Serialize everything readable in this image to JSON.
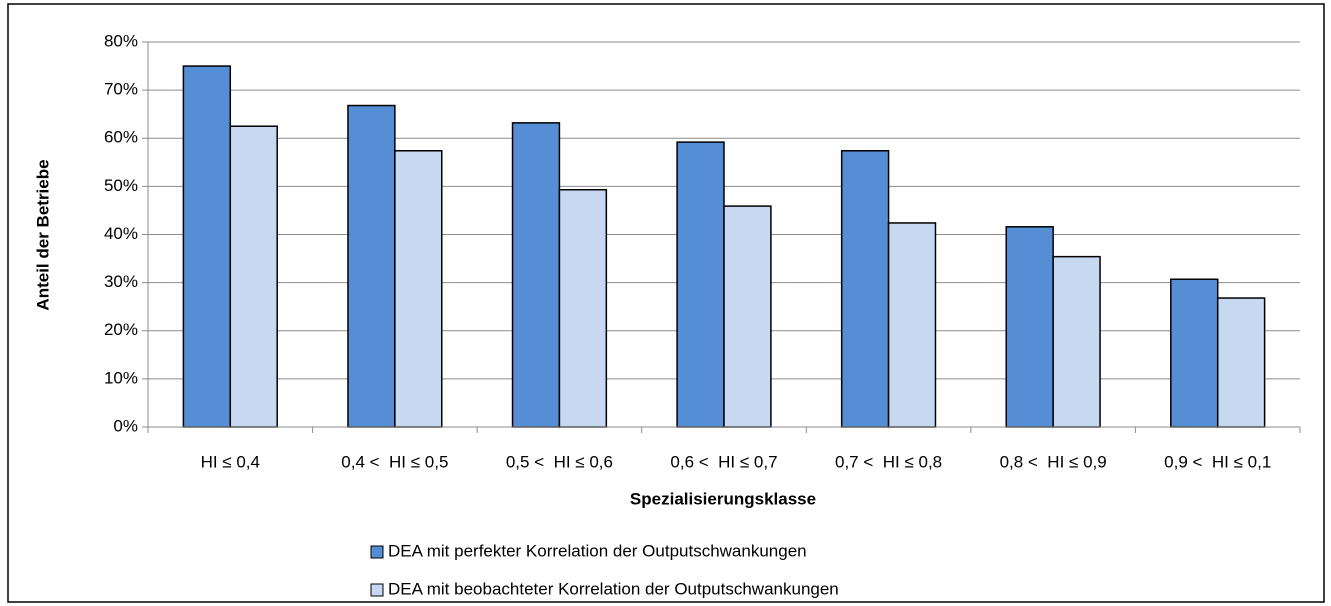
{
  "chart_data": {
    "type": "bar",
    "x_label": "Spezialisierungsklasse",
    "y_label": "Anteil der Betriebe",
    "categories": [
      "HI ≤ 0,4",
      "0,4 <  HI ≤ 0,5",
      "0,5 <  HI ≤ 0,6",
      "0,6 <  HI ≤ 0,7",
      "0,7 <  HI ≤ 0,8",
      "0,8 <  HI ≤ 0,9",
      "0,9 <  HI ≤ 0,1"
    ],
    "series": [
      {
        "name": "DEA mit perfekter Korrelation der Outputschwankungen",
        "color": "#558ed5",
        "values": [
          75,
          66.8,
          63.2,
          59.2,
          57.4,
          41.6,
          30.7
        ]
      },
      {
        "name": "DEA mit beobachteter Korrelation der Outputschwankungen",
        "color": "#c6d9f1",
        "values": [
          62.5,
          57.4,
          49.3,
          45.9,
          42.4,
          35.4,
          26.8
        ]
      }
    ],
    "ylim": [
      0,
      80
    ],
    "yticks": [
      {
        "value": 0,
        "label": "0%"
      },
      {
        "value": 10,
        "label": "10%"
      },
      {
        "value": 20,
        "label": "20%"
      },
      {
        "value": 30,
        "label": "30%"
      },
      {
        "value": 40,
        "label": "40%"
      },
      {
        "value": 50,
        "label": "50%"
      },
      {
        "value": 60,
        "label": "60%"
      },
      {
        "value": 70,
        "label": "70%"
      },
      {
        "value": 80,
        "label": "80%"
      }
    ],
    "grid": true,
    "legend": "bottom"
  }
}
